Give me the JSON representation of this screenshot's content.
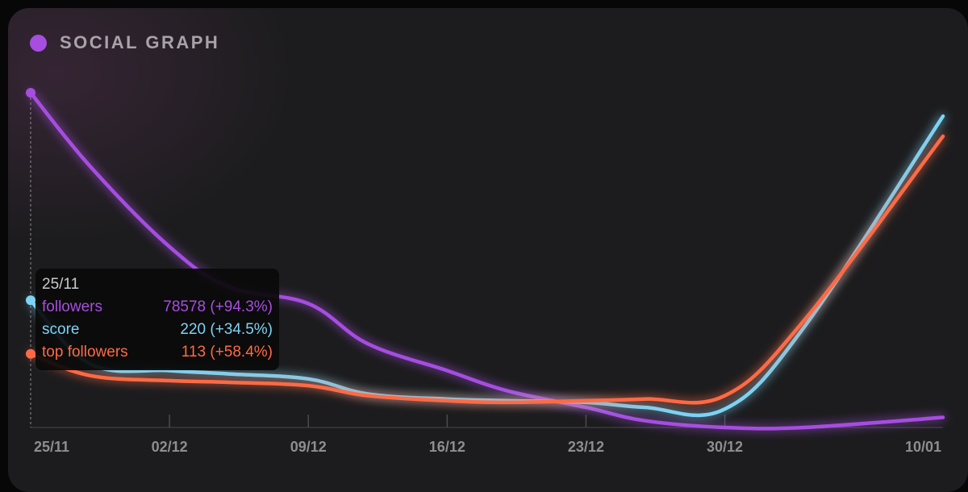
{
  "widget": {
    "title": "SOCIAL GRAPH",
    "title_dot_color": "#a64ee0",
    "background_color": "#1c1c1e"
  },
  "tooltip": {
    "date": "25/11",
    "rows": [
      {
        "label": "followers",
        "value": "78578 (+94.3%)",
        "color": "#a64ee0"
      },
      {
        "label": "score",
        "value": "220 (+34.5%)",
        "color": "#7dd3f5"
      },
      {
        "label": "top followers",
        "value": "113 (+58.4%)",
        "color": "#ff6a45"
      }
    ]
  },
  "chart_data": {
    "type": "line",
    "x_tick_labels": [
      "25/11",
      "02/12",
      "09/12",
      "16/12",
      "23/12",
      "30/12",
      "10/01"
    ],
    "grid": false,
    "legend": "none",
    "hover_marker": "25/11",
    "y_scale": "each series normalized to its own range (no y axis shown)",
    "series": [
      {
        "name": "followers",
        "color": "#a64ee0",
        "x": [
          "25/11",
          "28/11",
          "02/12",
          "05/12",
          "09/12",
          "12/12",
          "16/12",
          "19/12",
          "23/12",
          "26/12",
          "30/12",
          "03/01",
          "10/01"
        ],
        "y": [
          1.0,
          0.78,
          0.54,
          0.42,
          0.37,
          0.25,
          0.17,
          0.11,
          0.06,
          0.02,
          0.0,
          0.0,
          0.03
        ]
      },
      {
        "name": "score",
        "color": "#7dd3f5",
        "x": [
          "25/11",
          "28/11",
          "02/12",
          "05/12",
          "09/12",
          "12/12",
          "16/12",
          "19/12",
          "23/12",
          "26/12",
          "30/12",
          "03/01",
          "10/01"
        ],
        "y": [
          0.38,
          0.19,
          0.17,
          0.16,
          0.145,
          0.1,
          0.085,
          0.08,
          0.075,
          0.06,
          0.055,
          0.3,
          0.93
        ]
      },
      {
        "name": "top followers",
        "color": "#ff6a45",
        "x": [
          "25/11",
          "28/11",
          "02/12",
          "05/12",
          "09/12",
          "12/12",
          "16/12",
          "19/12",
          "23/12",
          "26/12",
          "30/12",
          "03/01",
          "10/01"
        ],
        "y": [
          0.22,
          0.155,
          0.14,
          0.135,
          0.125,
          0.095,
          0.08,
          0.075,
          0.08,
          0.085,
          0.095,
          0.32,
          0.87
        ]
      }
    ]
  }
}
